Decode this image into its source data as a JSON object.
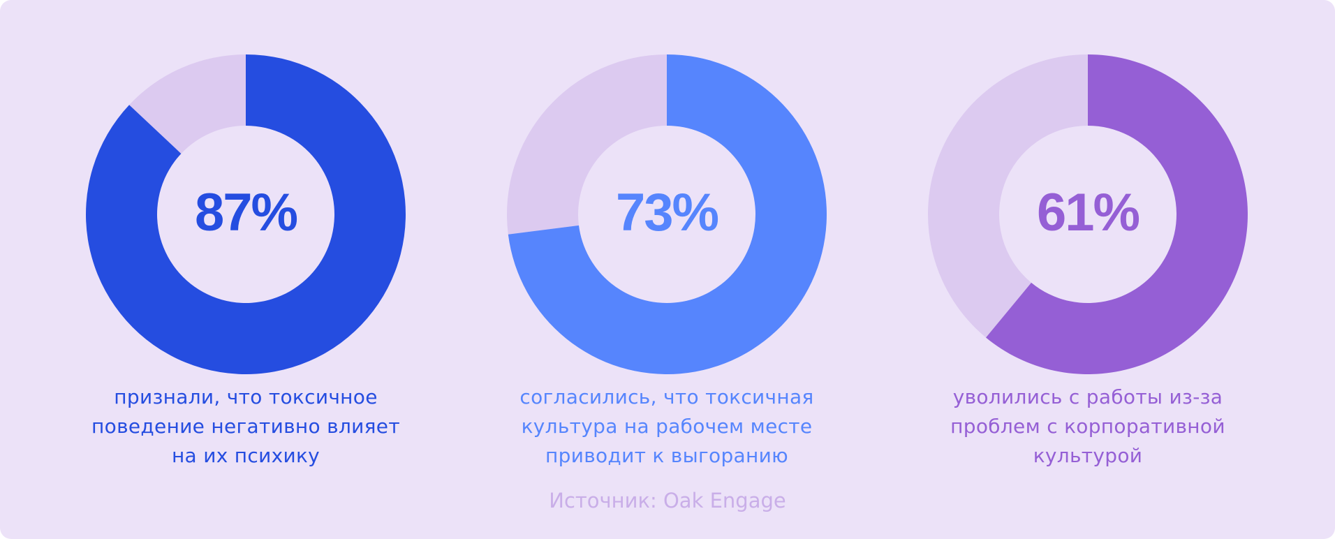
{
  "colors": {
    "background": "#ece2f8",
    "track": "#dccaf0",
    "source_text": "#c9aee8"
  },
  "chart_data": [
    {
      "type": "pie",
      "subtype": "donut",
      "value": 87,
      "label": "87%",
      "caption_lines": [
        "признали, что токсичное",
        "поведение негативно влияет",
        "на их психику"
      ],
      "color": "#254de0"
    },
    {
      "type": "pie",
      "subtype": "donut",
      "value": 73,
      "label": "73%",
      "caption_lines": [
        "согласились, что токсичная",
        "культура на рабочем месте",
        "приводит к выгоранию"
      ],
      "color": "#5685fd"
    },
    {
      "type": "pie",
      "subtype": "donut",
      "value": 61,
      "label": "61%",
      "caption_lines": [
        "уволились с работы из-за",
        "проблем с корпоративной",
        "культурой"
      ],
      "color": "#955fd5"
    }
  ],
  "source": "Источник: Oak Engage"
}
